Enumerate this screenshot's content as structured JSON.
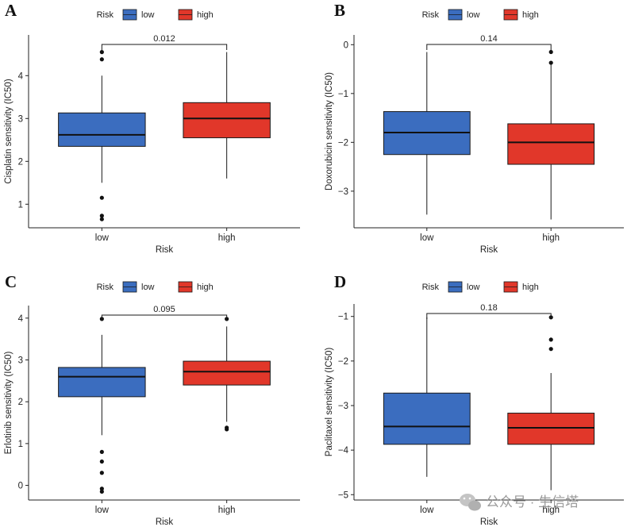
{
  "colors": {
    "low": "#3b6dbf",
    "high": "#e1372a",
    "axis": "#222222"
  },
  "legend": {
    "title": "Risk",
    "labels": [
      "low",
      "high"
    ]
  },
  "watermark": {
    "text": "公众号 · 生信塔",
    "icon": "wechat-icon"
  },
  "chart_data": [
    {
      "type": "box",
      "panel": "A",
      "ylabel": "Cisplatin sensitivity (IC50)",
      "xlabel": "Risk",
      "categories": [
        "low",
        "high"
      ],
      "ylim": [
        0.45,
        4.95
      ],
      "yticks": [
        1,
        2,
        3,
        4
      ],
      "p_value": "0.012",
      "boxes": [
        {
          "group": "low",
          "whisker_low": 1.5,
          "q1": 2.35,
          "median": 2.62,
          "q3": 3.13,
          "whisker_high": 4.0,
          "outliers": [
            4.55,
            4.38,
            1.15,
            0.73,
            0.65
          ]
        },
        {
          "group": "high",
          "whisker_low": 1.6,
          "q1": 2.55,
          "median": 3.0,
          "q3": 3.37,
          "whisker_high": 4.55,
          "outliers": []
        }
      ]
    },
    {
      "type": "box",
      "panel": "B",
      "ylabel": "Doxorubicin sensitivity (IC50)",
      "xlabel": "Risk",
      "categories": [
        "low",
        "high"
      ],
      "ylim": [
        -3.75,
        0.2
      ],
      "yticks": [
        -3,
        -2,
        -1,
        0
      ],
      "p_value": "0.14",
      "boxes": [
        {
          "group": "low",
          "whisker_low": -3.48,
          "q1": -2.25,
          "median": -1.8,
          "q3": -1.37,
          "whisker_high": -0.15,
          "outliers": []
        },
        {
          "group": "high",
          "whisker_low": -3.58,
          "q1": -2.45,
          "median": -2.0,
          "q3": -1.62,
          "whisker_high": -0.4,
          "outliers": [
            -0.15,
            -0.37
          ]
        }
      ]
    },
    {
      "type": "box",
      "panel": "C",
      "ylabel": "Erlotinib sensitivity (IC50)",
      "xlabel": "Risk",
      "categories": [
        "low",
        "high"
      ],
      "ylim": [
        -0.35,
        4.3
      ],
      "yticks": [
        0,
        1,
        2,
        3,
        4
      ],
      "p_value": "0.095",
      "boxes": [
        {
          "group": "low",
          "whisker_low": 1.2,
          "q1": 2.12,
          "median": 2.6,
          "q3": 2.82,
          "whisker_high": 3.6,
          "outliers": [
            3.98,
            0.8,
            0.57,
            0.3,
            -0.08,
            -0.15
          ]
        },
        {
          "group": "high",
          "whisker_low": 1.52,
          "q1": 2.4,
          "median": 2.72,
          "q3": 2.97,
          "whisker_high": 3.8,
          "outliers": [
            3.98,
            1.38,
            1.34
          ]
        }
      ]
    },
    {
      "type": "box",
      "panel": "D",
      "ylabel": "Paclitaxel sensitivity (IC50)",
      "xlabel": "Risk",
      "categories": [
        "low",
        "high"
      ],
      "ylim": [
        -5.12,
        -0.72
      ],
      "yticks": [
        -5,
        -4,
        -3,
        -2,
        -1
      ],
      "p_value": "0.18",
      "boxes": [
        {
          "group": "low",
          "whisker_low": -4.6,
          "q1": -3.87,
          "median": -3.47,
          "q3": -2.72,
          "whisker_high": -1.02,
          "outliers": []
        },
        {
          "group": "high",
          "whisker_low": -4.9,
          "q1": -3.87,
          "median": -3.5,
          "q3": -3.17,
          "whisker_high": -2.27,
          "outliers": [
            -1.02,
            -1.52,
            -1.73
          ]
        }
      ]
    }
  ]
}
